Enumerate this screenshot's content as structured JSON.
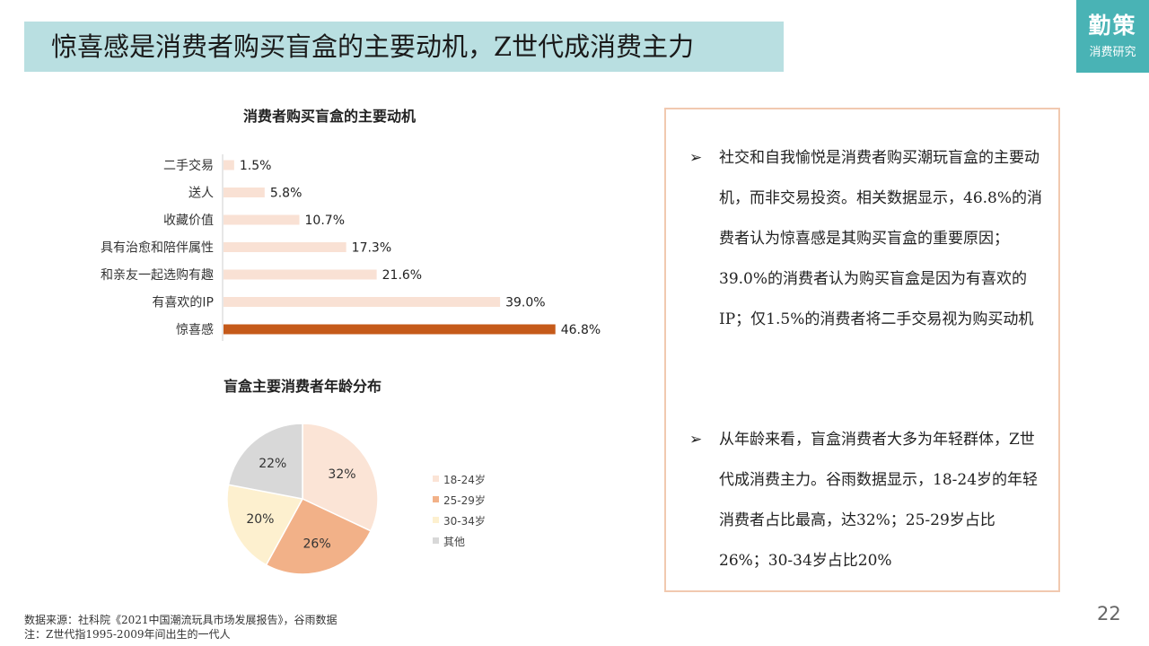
{
  "header": {
    "title": "惊喜感是消费者购买盲盒的主要动机，Z世代成消费主力"
  },
  "brand": {
    "name": "勤策",
    "subtitle": "消费研究",
    "color": "#49b3b5"
  },
  "chart_data": [
    {
      "type": "bar",
      "orientation": "horizontal",
      "title": "消费者购买盲盒的主要动机",
      "categories": [
        "二手交易",
        "送人",
        "收藏价值",
        "具有治愈和陪伴属性",
        "和亲友一起选购有趣",
        "有喜欢的IP",
        "惊喜感"
      ],
      "values": [
        1.5,
        5.8,
        10.7,
        17.3,
        21.6,
        39.0,
        46.8
      ],
      "value_labels": [
        "1.5%",
        "5.8%",
        "10.7%",
        "17.3%",
        "21.6%",
        "39.0%",
        "46.8%"
      ],
      "unit": "%",
      "bar_color": "#f9e1d4",
      "highlight_color": "#c55a1a",
      "highlight_index": 6,
      "xlabel": "",
      "ylabel": ""
    },
    {
      "type": "pie",
      "title": "盲盒主要消费者年龄分布",
      "labels": [
        "18-24岁",
        "25-29岁",
        "30-34岁",
        "其他"
      ],
      "values": [
        32,
        26,
        20,
        22
      ],
      "value_labels": [
        "32%",
        "26%",
        "20%",
        "22%"
      ],
      "colors": [
        "#fbe4d6",
        "#f2b188",
        "#fdf0cf",
        "#d8d8d8"
      ],
      "legend_position": "right"
    }
  ],
  "textbox": {
    "bullets": [
      {
        "marker": "➢",
        "text": "社交和自我愉悦是消费者购买潮玩盲盒的主要动机，而非交易投资。相关数据显示，46.8%的消费者认为惊喜感是其购买盲盒的重要原因；39.0%的消费者认为购买盲盒是因为有喜欢的IP；仅1.5%的消费者将二手交易视为购买动机"
      },
      {
        "marker": "➢",
        "text": "从年龄来看，盲盒消费者大多为年轻群体，Z世代成消费主力。谷雨数据显示，18-24岁的年轻消费者占比最高，达32%；25-29岁占比26%；30-34岁占比20%"
      }
    ]
  },
  "footer": {
    "source": "数据来源：社科院《2021中国潮流玩具市场发展报告》，谷雨数据",
    "note": "注：Z世代指1995-2009年间出生的一代人",
    "page_number": "22"
  }
}
